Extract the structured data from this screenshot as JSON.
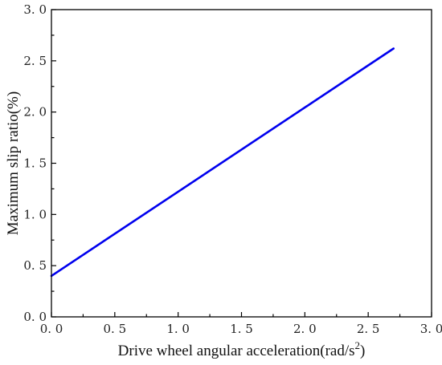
{
  "chart_data": {
    "type": "line",
    "title": "",
    "xlabel": "Drive wheel angular acceleration(rad/s",
    "xlabel_sup": "2",
    "xlabel_end": ")",
    "ylabel": "Maximum slip ratio(%)",
    "xlim": [
      0,
      3.0
    ],
    "ylim": [
      0,
      3.0
    ],
    "x_ticks": [
      "0. 0",
      "0. 5",
      "1. 0",
      "1. 5",
      "2. 0",
      "2. 5",
      "3. 0"
    ],
    "y_ticks": [
      "0. 0",
      "0. 5",
      "1. 0",
      "1. 5",
      "2. 0",
      "2. 5",
      "3. 0"
    ],
    "grid": false,
    "series": [
      {
        "color": "#0000ee",
        "x": [
          0.0,
          2.7
        ],
        "y": [
          0.4,
          2.62
        ]
      }
    ]
  }
}
